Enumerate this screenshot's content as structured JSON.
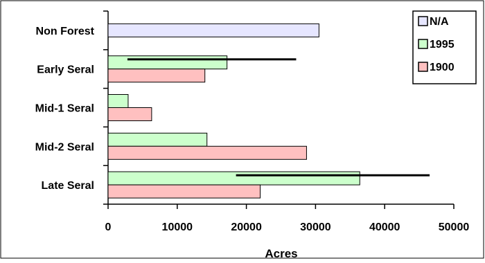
{
  "chart_data": {
    "type": "bar",
    "orientation": "horizontal",
    "categories": [
      "Non Forest",
      "Early Seral",
      "Mid-1 Seral",
      "Mid-2 Seral",
      "Late Seral"
    ],
    "series": [
      {
        "name": "N/A",
        "color": "#e6e6ff",
        "values": [
          30500,
          null,
          null,
          null,
          null
        ]
      },
      {
        "name": "1995",
        "color": "#ccffcc",
        "values": [
          null,
          17200,
          2900,
          14300,
          36400
        ]
      },
      {
        "name": "1900",
        "color": "#ffc0c0",
        "values": [
          null,
          14000,
          6300,
          28700,
          22000
        ]
      }
    ],
    "ranges": [
      {
        "category": "Early Seral",
        "min": 2800,
        "max": 27200
      },
      {
        "category": "Late Seral",
        "min": 18500,
        "max": 46500
      }
    ],
    "xlabel": "Acres",
    "ylabel": "",
    "xlim": [
      0,
      50000
    ],
    "xticks": [
      0,
      10000,
      20000,
      30000,
      40000,
      50000
    ],
    "grid": false,
    "legend": "top-right"
  }
}
